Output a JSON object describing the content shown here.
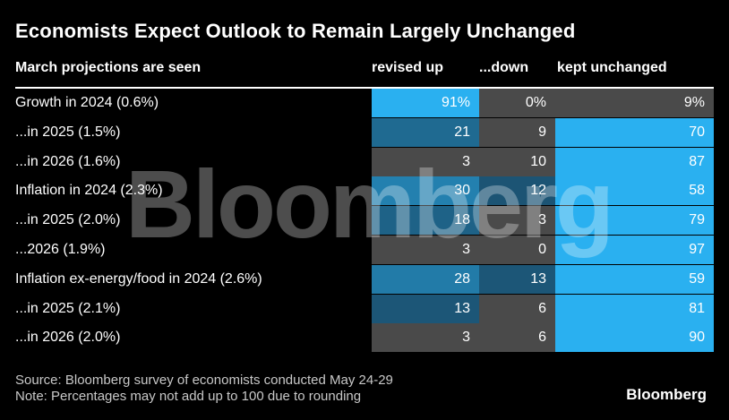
{
  "title": "Economists Expect Outlook to Remain Largely Unchanged",
  "header": {
    "label": "March projections are seen",
    "up": "revised up",
    "down": "...down",
    "kept": "kept unchanged"
  },
  "colors": {
    "background": "#000000",
    "empty_cell": "#4a4a4a",
    "scale_light": "#2ab0f0",
    "scale_dark": "#1b4f6d"
  },
  "chart_data": {
    "type": "table",
    "columns": [
      "revised up",
      "...down",
      "kept unchanged"
    ],
    "rows": [
      {
        "label": "Growth in 2024 (0.6%)",
        "up": 91,
        "down": 0,
        "kept": 9,
        "up_text": "91%",
        "down_text": "0%",
        "kept_text": "9%"
      },
      {
        "label": "...in 2025 (1.5%)",
        "up": 21,
        "down": 9,
        "kept": 70,
        "up_text": "21",
        "down_text": "9",
        "kept_text": "70"
      },
      {
        "label": "...in 2026 (1.6%)",
        "up": 3,
        "down": 10,
        "kept": 87,
        "up_text": "3",
        "down_text": "10",
        "kept_text": "87"
      },
      {
        "label": "Inflation in 2024 (2.3%)",
        "up": 30,
        "down": 12,
        "kept": 58,
        "up_text": "30",
        "down_text": "12",
        "kept_text": "58"
      },
      {
        "label": "...in 2025 (2.0%)",
        "up": 18,
        "down": 3,
        "kept": 79,
        "up_text": "18",
        "down_text": "3",
        "kept_text": "79"
      },
      {
        "label": "...2026 (1.9%)",
        "up": 3,
        "down": 0,
        "kept": 97,
        "up_text": "3",
        "down_text": "0",
        "kept_text": "97"
      },
      {
        "label": "Inflation ex-energy/food in 2024 (2.6%)",
        "up": 28,
        "down": 13,
        "kept": 59,
        "up_text": "28",
        "down_text": "13",
        "kept_text": "59"
      },
      {
        "label": "...in 2025 (2.1%)",
        "up": 13,
        "down": 6,
        "kept": 81,
        "up_text": "13",
        "down_text": "6",
        "kept_text": "81"
      },
      {
        "label": "...in 2026 (2.0%)",
        "up": 3,
        "down": 6,
        "kept": 90,
        "up_text": "3",
        "down_text": "6",
        "kept_text": "90"
      }
    ]
  },
  "footnotes": {
    "source": "Source: Bloomberg survey of economists conducted May 24-29",
    "note": "Note: Percentages may not add up to 100 due to rounding"
  },
  "watermark": "Bloomberg",
  "logo": "Bloomberg"
}
